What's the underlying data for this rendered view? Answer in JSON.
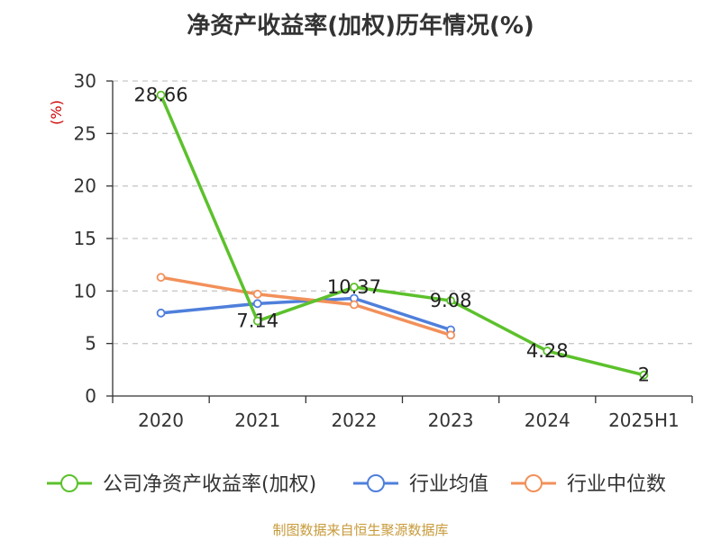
{
  "chart_data": {
    "type": "line",
    "title": "净资产收益率(加权)历年情况(%)",
    "ylabel": "(%)",
    "xlabel": "",
    "categories": [
      "2020",
      "2021",
      "2022",
      "2023",
      "2024",
      "2025H1"
    ],
    "ylim": [
      0,
      30
    ],
    "yticks": [
      0,
      5,
      10,
      15,
      20,
      25,
      30
    ],
    "grid": "horizontal-dashed",
    "legend_position": "bottom",
    "series": [
      {
        "name": "公司净资产收益率(加权)",
        "color": "#5cc12c",
        "values": [
          28.66,
          7.14,
          10.37,
          9.08,
          4.28,
          2
        ],
        "labels": [
          "28.66",
          "7.14",
          "10.37",
          "9.08",
          "4.28",
          "2"
        ]
      },
      {
        "name": "行业均值",
        "color": "#4f7fdb",
        "values": [
          7.9,
          8.8,
          9.3,
          6.3,
          null,
          null
        ]
      },
      {
        "name": "行业中位数",
        "color": "#f2905a",
        "values": [
          11.3,
          9.7,
          8.7,
          5.8,
          null,
          null
        ]
      }
    ]
  },
  "footer": {
    "source": "制图数据来自恒生聚源数据库"
  }
}
